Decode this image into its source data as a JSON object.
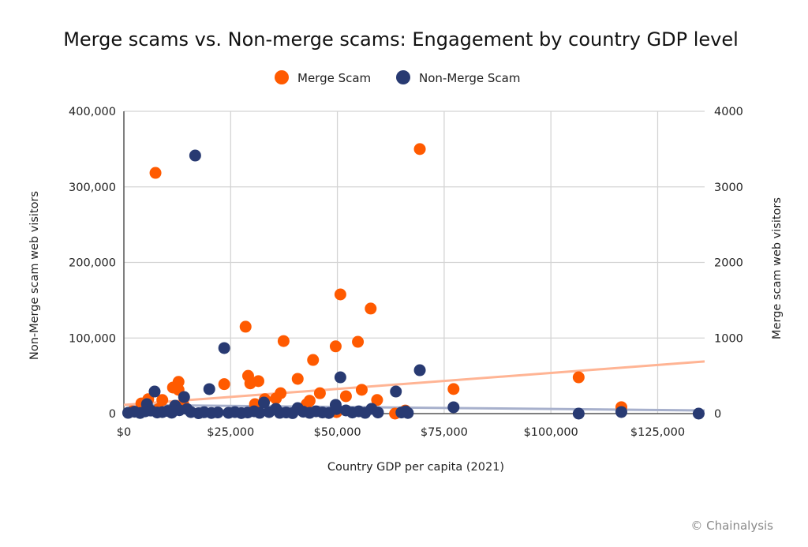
{
  "chart_data": {
    "type": "scatter",
    "title": "Merge scams vs. Non-merge scams: Engagement by country GDP level",
    "xlabel": "Country GDP per capita (2021)",
    "ylabel_left": "Non-Merge scam web visitors",
    "ylabel_right": "Merge scam web visitors",
    "xlim": [
      0,
      136000
    ],
    "ylim_left": [
      0,
      400000
    ],
    "ylim_right": [
      0,
      4000
    ],
    "x_ticks": [
      0,
      25000,
      50000,
      75000,
      100000,
      125000
    ],
    "x_tick_labels": [
      "$0",
      "$25,000",
      "$50,000",
      "$75,000",
      "$100,000",
      "$125,000"
    ],
    "y_left_ticks": [
      0,
      100000,
      200000,
      300000,
      400000
    ],
    "y_left_tick_labels": [
      "0",
      "100,000",
      "200,000",
      "300,000",
      "400,000"
    ],
    "y_right_ticks": [
      0,
      1000,
      2000,
      3000,
      4000
    ],
    "y_right_tick_labels": [
      "0",
      "1000",
      "2000",
      "3000",
      "4000"
    ],
    "grid": true,
    "legend_position": "top-center",
    "series": [
      {
        "name": "Merge Scam",
        "axis": "right",
        "color": "#ff5a00",
        "trendline_color": "#ffb494",
        "trendline": [
          [
            0,
            115
          ],
          [
            136000,
            690
          ]
        ],
        "points": [
          [
            7400,
            3185
          ],
          [
            69300,
            3500
          ],
          [
            50700,
            1577
          ],
          [
            57800,
            1390
          ],
          [
            28500,
            1150
          ],
          [
            37400,
            960
          ],
          [
            49600,
            890
          ],
          [
            54800,
            950
          ],
          [
            44300,
            710
          ],
          [
            29100,
            500
          ],
          [
            29600,
            400
          ],
          [
            31500,
            430
          ],
          [
            23500,
            390
          ],
          [
            12800,
            420
          ],
          [
            11500,
            345
          ],
          [
            12800,
            315
          ],
          [
            40700,
            460
          ],
          [
            36700,
            270
          ],
          [
            35600,
            200
          ],
          [
            33000,
            190
          ],
          [
            55700,
            315
          ],
          [
            45900,
            270
          ],
          [
            52000,
            230
          ],
          [
            59300,
            180
          ],
          [
            43500,
            170
          ],
          [
            42800,
            125
          ],
          [
            9000,
            180
          ],
          [
            5700,
            190
          ],
          [
            4100,
            135
          ],
          [
            77200,
            325
          ],
          [
            106500,
            480
          ],
          [
            116500,
            85
          ],
          [
            65900,
            40
          ],
          [
            63500,
            0
          ],
          [
            30700,
            125
          ],
          [
            13900,
            125
          ],
          [
            49800,
            20
          ],
          [
            8100,
            60
          ],
          [
            2000,
            30
          ]
        ]
      },
      {
        "name": "Non-Merge Scam",
        "axis": "left",
        "color": "#283a72",
        "trendline_color": "#a7b0cc",
        "trendline": [
          [
            0,
            11500
          ],
          [
            136000,
            4200
          ]
        ],
        "points": [
          [
            16700,
            341500
          ],
          [
            23500,
            86700
          ],
          [
            50700,
            48000
          ],
          [
            69300,
            57400
          ],
          [
            63700,
            29200
          ],
          [
            7200,
            29200
          ],
          [
            20000,
            32400
          ],
          [
            14100,
            21900
          ],
          [
            77200,
            8400
          ],
          [
            49600,
            11500
          ],
          [
            32800,
            14600
          ],
          [
            12000,
            10400
          ],
          [
            5400,
            12500
          ],
          [
            35600,
            6300
          ],
          [
            40700,
            7300
          ],
          [
            58000,
            6300
          ],
          [
            52000,
            4200
          ],
          [
            106500,
            0
          ],
          [
            116500,
            2100
          ],
          [
            134600,
            0
          ],
          [
            1000,
            1000
          ],
          [
            2500,
            2500
          ],
          [
            3800,
            800
          ],
          [
            5000,
            3000
          ],
          [
            6300,
            4000
          ],
          [
            7800,
            1500
          ],
          [
            9000,
            2000
          ],
          [
            10300,
            3500
          ],
          [
            11200,
            1200
          ],
          [
            13000,
            4500
          ],
          [
            14800,
            6000
          ],
          [
            15700,
            2000
          ],
          [
            17500,
            500
          ],
          [
            18800,
            1800
          ],
          [
            20500,
            800
          ],
          [
            22000,
            1500
          ],
          [
            24500,
            1000
          ],
          [
            26000,
            2000
          ],
          [
            27500,
            700
          ],
          [
            29000,
            1500
          ],
          [
            30500,
            3000
          ],
          [
            31800,
            1000
          ],
          [
            34000,
            2000
          ],
          [
            36500,
            1000
          ],
          [
            38000,
            1500
          ],
          [
            39500,
            600
          ],
          [
            42000,
            2500
          ],
          [
            43500,
            1000
          ],
          [
            45000,
            3000
          ],
          [
            46500,
            1500
          ],
          [
            48000,
            800
          ],
          [
            49800,
            6000
          ],
          [
            53500,
            1500
          ],
          [
            55000,
            3000
          ],
          [
            56500,
            1000
          ],
          [
            59500,
            1500
          ],
          [
            65000,
            1500
          ],
          [
            66500,
            800
          ],
          [
            66000,
            3000
          ]
        ]
      }
    ],
    "credit": "© Chainalysis"
  }
}
